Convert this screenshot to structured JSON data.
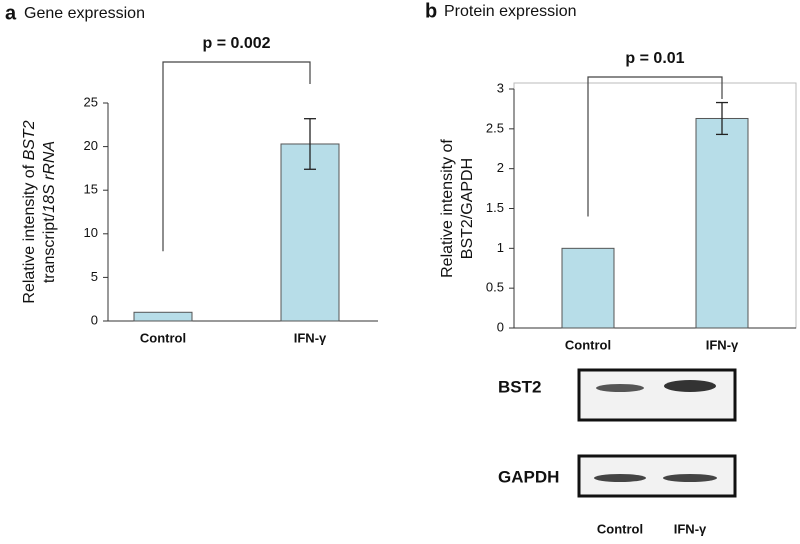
{
  "chart_data": [
    {
      "type": "bar",
      "label": "a",
      "title": "Gene expression",
      "ylabel": [
        [
          "Relative intensity of ",
          "BST2"
        ],
        [
          "transcript/",
          "18S rRNA"
        ]
      ],
      "categories": [
        "Control",
        "IFN-γ"
      ],
      "values": [
        1,
        20.3
      ],
      "errors": [
        null,
        2.9
      ],
      "color": "#b7dde8",
      "ylim": [
        0,
        25
      ],
      "yticks": [
        0,
        5,
        10,
        15,
        20,
        25
      ],
      "annotation": "p = 0.002"
    },
    {
      "type": "bar",
      "label": "b",
      "title": "Protein expression",
      "ylabel": [
        [
          "Relative intensity of"
        ],
        [
          "BST2/GAPDH"
        ]
      ],
      "categories": [
        "Control",
        "IFN-γ"
      ],
      "values": [
        1,
        2.63
      ],
      "errors": [
        null,
        0.2
      ],
      "color": "#b7dde8",
      "ylim": [
        0,
        3
      ],
      "yticks": [
        0,
        0.5,
        1,
        1.5,
        2,
        2.5,
        3
      ],
      "annotation": "p = 0.01"
    }
  ],
  "blot": {
    "rows": [
      "BST2",
      "GAPDH"
    ],
    "lanes": [
      "Control",
      "IFN-γ"
    ]
  }
}
